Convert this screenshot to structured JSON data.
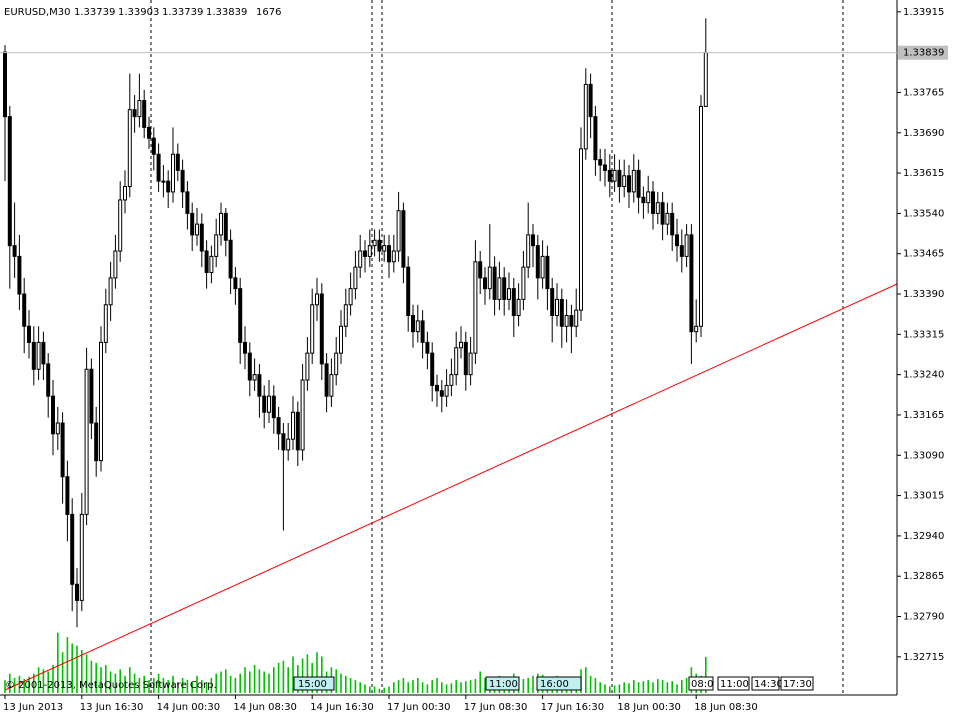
{
  "chart_data": {
    "type": "candlestick",
    "symbol": "EURUSD,M30",
    "ylim": [
      1.32644,
      1.33937
    ],
    "yticks": [
      1.33915,
      1.33765,
      {
        "value": 1.3369,
        "label": "1.33690"
      },
      1.33615,
      {
        "value": 1.3354,
        "label": "1.33540"
      },
      1.33465,
      {
        "value": 1.3339,
        "label": "1.33390"
      },
      1.33315,
      {
        "value": 1.3324,
        "label": "1.33240"
      },
      1.33165,
      {
        "value": 1.3309,
        "label": "1.33090"
      },
      1.33015,
      {
        "value": 1.3294,
        "label": "1.32940"
      },
      1.32865,
      {
        "value": 1.3279,
        "label": "1.32790"
      },
      1.32715
    ],
    "xticks": [
      {
        "value": 0,
        "label": "13 Jun 2013"
      },
      {
        "value": 16,
        "label": "13 Jun 16:30"
      },
      {
        "value": 32,
        "label": "14 Jun 00:30"
      },
      {
        "value": 48,
        "label": "14 Jun 08:30"
      },
      {
        "value": 64,
        "label": "14 Jun 16:30"
      },
      {
        "value": 80,
        "label": "17 Jun 00:30"
      },
      {
        "value": 96,
        "label": "17 Jun 08:30"
      },
      {
        "value": 112,
        "label": "17 Jun 16:30"
      },
      {
        "value": 128,
        "label": "18 Jun 00:30"
      },
      {
        "value": 144,
        "label": "18 Jun 08:30"
      }
    ],
    "bullish_color": "#ffffff",
    "bearish_color": "#000000",
    "volume_color": "#00c000",
    "ohlc": [
      [
        1.3384,
        1.33853,
        1.336,
        1.3372
      ],
      [
        1.3372,
        1.3374,
        1.334,
        1.3348
      ],
      [
        1.3348,
        1.3356,
        1.3342,
        1.3346
      ],
      [
        1.3346,
        1.335,
        1.3336,
        1.3339
      ],
      [
        1.3339,
        1.3342,
        1.3328,
        1.3333
      ],
      [
        1.3333,
        1.3336,
        1.3327,
        1.333
      ],
      [
        1.333,
        1.3333,
        1.3322,
        1.3325
      ],
      [
        1.3325,
        1.3333,
        1.3323,
        1.333
      ],
      [
        1.333,
        1.3332,
        1.3323,
        1.3326
      ],
      [
        1.3326,
        1.3328,
        1.3316,
        1.332
      ],
      [
        1.332,
        1.3323,
        1.3309,
        1.3313
      ],
      [
        1.3313,
        1.3318,
        1.331,
        1.3315
      ],
      [
        1.3315,
        1.3317,
        1.33,
        1.3305
      ],
      [
        1.3305,
        1.3308,
        1.3293,
        1.3298
      ],
      [
        1.3298,
        1.3301,
        1.328,
        1.3285
      ],
      [
        1.3285,
        1.3288,
        1.3277,
        1.3282
      ],
      [
        1.3282,
        1.3302,
        1.328,
        1.3298
      ],
      [
        1.3298,
        1.3329,
        1.3296,
        1.3325
      ],
      [
        1.3325,
        1.3327,
        1.3312,
        1.3315
      ],
      [
        1.3315,
        1.3318,
        1.3305,
        1.3308
      ],
      [
        1.3308,
        1.3333,
        1.3306,
        1.333
      ],
      [
        1.333,
        1.334,
        1.3328,
        1.3337
      ],
      [
        1.3337,
        1.3345,
        1.3334,
        1.3342
      ],
      [
        1.3342,
        1.335,
        1.334,
        1.3347
      ],
      [
        1.3347,
        1.336,
        1.3345,
        1.33565
      ],
      [
        1.33565,
        1.3362,
        1.3354,
        1.3359
      ],
      [
        1.3359,
        1.338,
        1.3357,
        1.33733
      ],
      [
        1.33733,
        1.3376,
        1.3369,
        1.3372
      ],
      [
        1.3372,
        1.338,
        1.337,
        1.3375
      ],
      [
        1.3375,
        1.3377,
        1.3368,
        1.337
      ],
      [
        1.337,
        1.3372,
        1.3366,
        1.3368
      ],
      [
        1.3368,
        1.337,
        1.3362,
        1.3365
      ],
      [
        1.3365,
        1.3367,
        1.3358,
        1.336
      ],
      [
        1.336,
        1.3363,
        1.3357,
        1.336
      ],
      [
        1.336,
        1.3362,
        1.3355,
        1.3358
      ],
      [
        1.3358,
        1.337,
        1.3356,
        1.3365
      ],
      [
        1.3365,
        1.3367,
        1.336,
        1.3362
      ],
      [
        1.3362,
        1.3364,
        1.3355,
        1.3358
      ],
      [
        1.3358,
        1.336,
        1.3351,
        1.3354
      ],
      [
        1.3354,
        1.3356,
        1.3347,
        1.335
      ],
      [
        1.335,
        1.3355,
        1.3348,
        1.3352
      ],
      [
        1.3352,
        1.3354,
        1.3344,
        1.3347
      ],
      [
        1.3347,
        1.3349,
        1.334,
        1.3343
      ],
      [
        1.3343,
        1.3348,
        1.3341,
        1.3346
      ],
      [
        1.3346,
        1.3353,
        1.3344,
        1.335
      ],
      [
        1.335,
        1.3356,
        1.3348,
        1.3354
      ],
      [
        1.3354,
        1.3355,
        1.3346,
        1.3349
      ],
      [
        1.3349,
        1.3351,
        1.3339,
        1.3342
      ],
      [
        1.3342,
        1.3344,
        1.3337,
        1.334
      ],
      [
        1.334,
        1.3342,
        1.3326,
        1.333
      ],
      [
        1.333,
        1.3333,
        1.3325,
        1.3328
      ],
      [
        1.3328,
        1.333,
        1.332,
        1.3323
      ],
      [
        1.3323,
        1.3327,
        1.3321,
        1.3324
      ],
      [
        1.3324,
        1.3326,
        1.3316,
        1.332
      ],
      [
        1.332,
        1.3322,
        1.3314,
        1.3317
      ],
      [
        1.3317,
        1.3323,
        1.3315,
        1.332
      ],
      [
        1.332,
        1.3322,
        1.3313,
        1.3316
      ],
      [
        1.3316,
        1.3318,
        1.331,
        1.3313
      ],
      [
        1.3313,
        1.3315,
        1.3295,
        1.331
      ],
      [
        1.331,
        1.3315,
        1.3308,
        1.3312
      ],
      [
        1.3312,
        1.332,
        1.331,
        1.3317
      ],
      [
        1.3317,
        1.3319,
        1.3307,
        1.331
      ],
      [
        1.331,
        1.3326,
        1.3308,
        1.3323
      ],
      [
        1.3323,
        1.3331,
        1.3321,
        1.3328
      ],
      [
        1.3328,
        1.334,
        1.3326,
        1.3337
      ],
      [
        1.3337,
        1.3342,
        1.3334,
        1.3339
      ],
      [
        1.3339,
        1.3341,
        1.3323,
        1.3326
      ],
      [
        1.3326,
        1.3328,
        1.3317,
        1.332
      ],
      [
        1.332,
        1.3327,
        1.3318,
        1.3324
      ],
      [
        1.3324,
        1.3331,
        1.3322,
        1.3328
      ],
      [
        1.3328,
        1.3336,
        1.3326,
        1.3333
      ],
      [
        1.3333,
        1.334,
        1.3331,
        1.3337
      ],
      [
        1.3337,
        1.3343,
        1.3335,
        1.334
      ],
      [
        1.334,
        1.3347,
        1.3338,
        1.3344
      ],
      [
        1.3344,
        1.335,
        1.3342,
        1.3347
      ],
      [
        1.3347,
        1.3349,
        1.3343,
        1.3346
      ],
      [
        1.3346,
        1.3351,
        1.3344,
        1.3348
      ],
      [
        1.3348,
        1.3351,
        1.3346,
        1.3349
      ],
      [
        1.3349,
        1.3351,
        1.3345,
        1.3347
      ],
      [
        1.3347,
        1.335,
        1.3345,
        1.3348
      ],
      [
        1.3348,
        1.335,
        1.3342,
        1.3345
      ],
      [
        1.3345,
        1.335,
        1.3343,
        1.3347
      ],
      [
        1.3347,
        1.3358,
        1.3345,
        1.33545
      ],
      [
        1.33545,
        1.3356,
        1.3341,
        1.3344
      ],
      [
        1.3344,
        1.3346,
        1.3332,
        1.3335
      ],
      [
        1.3335,
        1.3337,
        1.3329,
        1.3332
      ],
      [
        1.3332,
        1.3337,
        1.333,
        1.3334
      ],
      [
        1.3334,
        1.3336,
        1.3327,
        1.333
      ],
      [
        1.333,
        1.3332,
        1.3325,
        1.3328
      ],
      [
        1.3328,
        1.333,
        1.3319,
        1.3322
      ],
      [
        1.3322,
        1.3324,
        1.3318,
        1.3321
      ],
      [
        1.3321,
        1.3323,
        1.3317,
        1.332
      ],
      [
        1.332,
        1.3325,
        1.3318,
        1.3322
      ],
      [
        1.3322,
        1.3327,
        1.332,
        1.3324
      ],
      [
        1.3324,
        1.3332,
        1.3322,
        1.3329
      ],
      [
        1.3329,
        1.3333,
        1.3327,
        1.333
      ],
      [
        1.333,
        1.3332,
        1.3321,
        1.3324
      ],
      [
        1.3324,
        1.3331,
        1.3322,
        1.3328
      ],
      [
        1.3328,
        1.3349,
        1.3326,
        1.3345
      ],
      [
        1.3345,
        1.3347,
        1.3339,
        1.3342
      ],
      [
        1.3342,
        1.3344,
        1.3337,
        1.334
      ],
      [
        1.334,
        1.3352,
        1.3338,
        1.3344
      ],
      [
        1.3344,
        1.3346,
        1.3335,
        1.3338
      ],
      [
        1.3338,
        1.3345,
        1.3336,
        1.3342
      ],
      [
        1.3342,
        1.3344,
        1.3335,
        1.3338
      ],
      [
        1.3338,
        1.3343,
        1.3336,
        1.334
      ],
      [
        1.334,
        1.3342,
        1.3331,
        1.3335
      ],
      [
        1.3335,
        1.3341,
        1.3333,
        1.3338
      ],
      [
        1.3338,
        1.3347,
        1.3336,
        1.3344
      ],
      [
        1.3344,
        1.3356,
        1.3342,
        1.335
      ],
      [
        1.335,
        1.3352,
        1.3344,
        1.3348
      ],
      [
        1.3348,
        1.335,
        1.3338,
        1.3342
      ],
      [
        1.3342,
        1.3349,
        1.334,
        1.3346
      ],
      [
        1.3346,
        1.3348,
        1.3336,
        1.334
      ],
      [
        1.334,
        1.3342,
        1.333,
        1.3335
      ],
      [
        1.3335,
        1.3341,
        1.3333,
        1.3338
      ],
      [
        1.3338,
        1.334,
        1.3329,
        1.3333
      ],
      [
        1.3333,
        1.3338,
        1.333,
        1.3335
      ],
      [
        1.3335,
        1.3337,
        1.3328,
        1.3333
      ],
      [
        1.3333,
        1.334,
        1.3331,
        1.3336
      ],
      [
        1.3336,
        1.337,
        1.3334,
        1.3366
      ],
      [
        1.3366,
        1.3381,
        1.3364,
        1.3378
      ],
      [
        1.3378,
        1.338,
        1.3368,
        1.3372
      ],
      [
        1.3372,
        1.3374,
        1.3361,
        1.3364
      ],
      [
        1.3364,
        1.3366,
        1.336,
        1.3363
      ],
      [
        1.3363,
        1.3366,
        1.3359,
        1.3362
      ],
      [
        1.3362,
        1.3365,
        1.3357,
        1.336
      ],
      [
        1.336,
        1.3365,
        1.3358,
        1.3362
      ],
      [
        1.3362,
        1.3364,
        1.3356,
        1.3359
      ],
      [
        1.3359,
        1.3364,
        1.3357,
        1.3361
      ],
      [
        1.3361,
        1.3363,
        1.3355,
        1.3358
      ],
      [
        1.3358,
        1.3365,
        1.3356,
        1.3362
      ],
      [
        1.3362,
        1.3364,
        1.3354,
        1.3357
      ],
      [
        1.3357,
        1.3359,
        1.3353,
        1.3356
      ],
      [
        1.3356,
        1.3361,
        1.3354,
        1.3358
      ],
      [
        1.3358,
        1.336,
        1.3351,
        1.3354
      ],
      [
        1.3354,
        1.3358,
        1.3352,
        1.3356
      ],
      [
        1.3356,
        1.3358,
        1.3349,
        1.3352
      ],
      [
        1.3352,
        1.3356,
        1.335,
        1.3354
      ],
      [
        1.3354,
        1.3356,
        1.3347,
        1.335
      ],
      [
        1.335,
        1.3353,
        1.3345,
        1.3348
      ],
      [
        1.3348,
        1.3351,
        1.3343,
        1.3346
      ],
      [
        1.3346,
        1.3352,
        1.3344,
        1.335
      ],
      [
        1.335,
        1.3352,
        1.3326,
        1.3332
      ],
      [
        1.3332,
        1.3338,
        1.333,
        1.3333
      ],
      [
        1.3333,
        1.3376,
        1.3331,
        1.33739
      ],
      [
        1.33739,
        1.33903,
        1.33739,
        1.33839
      ]
    ],
    "volumes": [
      600,
      900,
      700,
      800,
      650,
      750,
      900,
      1200,
      1100,
      1000,
      1300,
      2800,
      1900,
      2600,
      2300,
      2200,
      2000,
      1800,
      1500,
      1400,
      1200,
      1300,
      1000,
      900,
      1100,
      800,
      1200,
      900,
      700,
      800,
      600,
      700,
      900,
      700,
      600,
      800,
      500,
      700,
      600,
      500,
      800,
      600,
      500,
      700,
      900,
      1000,
      1100,
      800,
      700,
      900,
      1200,
      1000,
      1300,
      1100,
      1000,
      900,
      1200,
      1400,
      1500,
      1200,
      1700,
      1300,
      1600,
      1800,
      1400,
      1900,
      1700,
      1000,
      1200,
      1100,
      900,
      800,
      700,
      600,
      500,
      400,
      300,
      300,
      200,
      250,
      300,
      500,
      600,
      700,
      500,
      600,
      700,
      500,
      400,
      600,
      700,
      500,
      400,
      450,
      600,
      500,
      550,
      600,
      650,
      1000,
      700,
      600,
      500,
      800,
      700,
      600,
      900,
      700,
      650,
      700,
      800,
      900,
      850,
      700,
      600,
      800,
      700,
      600,
      650,
      700,
      1100,
      1200,
      800,
      700,
      500,
      400,
      300,
      350,
      400,
      500,
      450,
      600,
      500,
      550,
      600,
      500,
      650,
      600,
      500,
      550,
      400,
      600,
      700,
      1200,
      900,
      800,
      1676
    ],
    "copyright": "© 2001-2013, MetaQuotes Software Corp.",
    "time_markers": [
      "15:00",
      "11:00",
      "16:00",
      "08:0",
      "11:00",
      "14:30",
      "17:30"
    ]
  }
}
